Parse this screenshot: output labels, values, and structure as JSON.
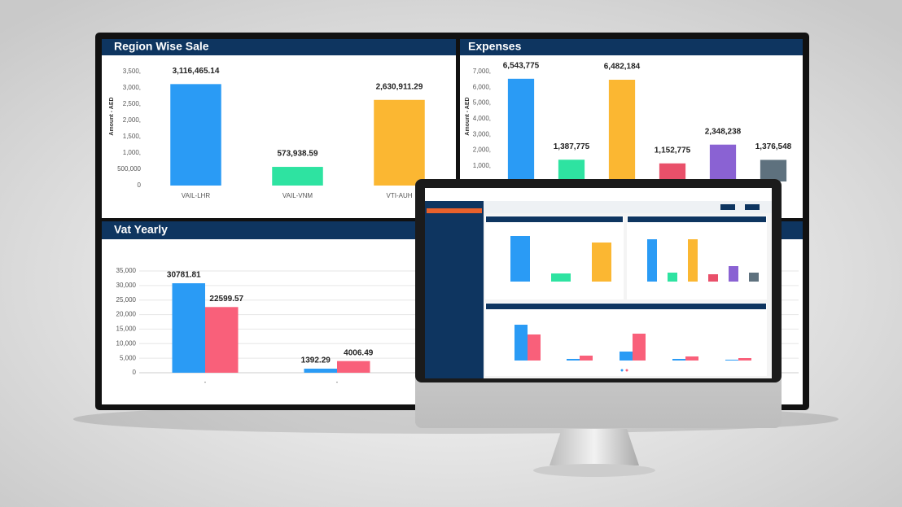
{
  "chart_data": [
    {
      "type": "bar",
      "title": "Region Wise Sale",
      "ylabel": "Amount - AED",
      "categories": [
        "VAIL-LHR",
        "VAIL-VNM",
        "VTI-AUH"
      ],
      "values": [
        3116465.14,
        573938.59,
        2630911.29
      ],
      "value_labels": [
        "3,116,465.14",
        "573,938.59",
        "2,630,911.29"
      ],
      "colors": [
        "#2a9bf5",
        "#2ee3a1",
        "#fbb732"
      ],
      "ylim": [
        0,
        3500000
      ],
      "yticks": [
        0,
        {
          "value": 500000,
          "label": "500,000"
        },
        {
          "value": 1000000,
          "label": "1,000,"
        },
        {
          "value": 1500000,
          "label": "1,500,"
        },
        {
          "value": 2000000,
          "label": "2,000,"
        },
        {
          "value": 2500000,
          "label": "2,500,"
        },
        {
          "value": 3000000,
          "label": "3,000,"
        },
        {
          "value": 3500000,
          "label": "3,500,"
        }
      ],
      "grid": false
    },
    {
      "type": "bar",
      "title": "Expenses",
      "ylabel": "Amount - AED",
      "categories": [
        null,
        null,
        null,
        null,
        null,
        null
      ],
      "values": [
        6543775,
        1387775,
        6482184,
        1152775,
        2348238,
        1376548
      ],
      "value_labels": [
        "6,543,775",
        "1,387,775",
        "6,482,184",
        "1,152,775",
        "2,348,238",
        "1,376,548"
      ],
      "colors": [
        "#2a9bf5",
        "#2ee3a1",
        "#fbb732",
        "#e9506a",
        "#8a62d3",
        "#5e717e"
      ],
      "ylim": [
        0,
        7000000
      ],
      "yticks": [
        {
          "value": 1000000,
          "label": "1,000,"
        },
        {
          "value": 2000000,
          "label": "2,000,"
        },
        {
          "value": 3000000,
          "label": "3,000,"
        },
        {
          "value": 4000000,
          "label": "4,000,"
        },
        {
          "value": 5000000,
          "label": "5,000,"
        },
        {
          "value": 6000000,
          "label": "6,000,"
        },
        {
          "value": 7000000,
          "label": "7,000,"
        }
      ],
      "grid": false
    },
    {
      "type": "grouped_bar",
      "title": "Vat Yearly",
      "categories": [
        "-",
        "-"
      ],
      "series": [
        {
          "name": null,
          "color": "#2a9bf5",
          "values": [
            30781.81,
            1392.29
          ]
        },
        {
          "name": null,
          "color": "#f9607a",
          "values": [
            22599.57,
            4006.49
          ]
        }
      ],
      "ylim": [
        0,
        35000
      ],
      "yticks": [
        0,
        {
          "value": 5000,
          "label": "5,000"
        },
        {
          "value": 10000,
          "label": "10,000"
        },
        {
          "value": 15000,
          "label": "15,000"
        },
        {
          "value": 20000,
          "label": "20,000"
        },
        {
          "value": 25000,
          "label": "25,000"
        },
        {
          "value": 30000,
          "label": "30,000"
        },
        {
          "value": 35000,
          "label": "35,000"
        }
      ],
      "grid": true
    }
  ]
}
